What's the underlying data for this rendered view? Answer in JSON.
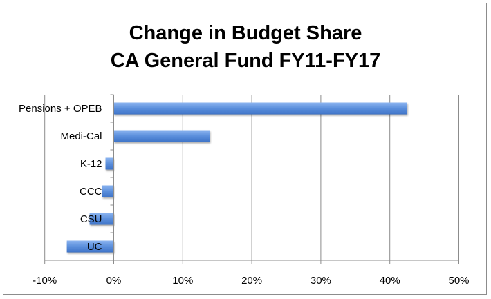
{
  "chart_data": {
    "type": "bar",
    "orientation": "horizontal",
    "title": [
      "Change in Budget Share",
      "CA General Fund FY11-FY17"
    ],
    "categories": [
      "Pensions + OPEB",
      "Medi-Cal",
      "K-12",
      "CCC",
      "CSU",
      "UC"
    ],
    "values": [
      42.5,
      13.9,
      -1.2,
      -1.7,
      -3.5,
      -6.8
    ],
    "unit": "%",
    "xlim": [
      -10,
      50
    ],
    "xticks": [
      -10,
      0,
      10,
      20,
      30,
      40,
      50
    ],
    "xtick_labels": [
      "-10%",
      "0%",
      "10%",
      "20%",
      "30%",
      "40%",
      "50%"
    ],
    "xlabel": "",
    "ylabel": "",
    "grid": "vertical",
    "legend": "none",
    "bar_color": "#5b8fdc"
  }
}
